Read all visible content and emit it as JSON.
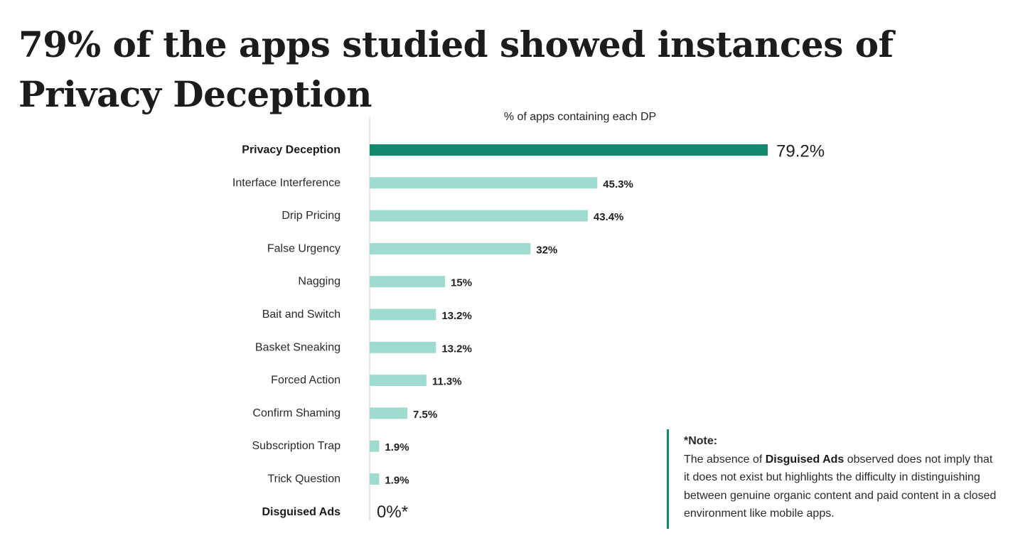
{
  "page": {
    "title": "79% of the apps studied showed instances of Privacy Deception"
  },
  "chart_data": {
    "type": "bar",
    "orientation": "horizontal",
    "title": "79% of the apps studied showed instances of Privacy Deception",
    "subtitle": "% of apps containing each DP",
    "categories": [
      "Privacy Deception",
      "Interface Interference",
      "Drip Pricing",
      "False Urgency",
      "Nagging",
      "Bait and Switch",
      "Basket Sneaking",
      "Forced Action",
      "Confirm Shaming",
      "Subscription Trap",
      "Trick Question",
      "Disguised Ads"
    ],
    "values": [
      79.2,
      45.3,
      43.4,
      32,
      15,
      13.2,
      13.2,
      11.3,
      7.5,
      1.9,
      1.9,
      0
    ],
    "value_labels": [
      "79.2%",
      "45.3%",
      "43.4%",
      "32%",
      "15%",
      "13.2%",
      "13.2%",
      "11.3%",
      "7.5%",
      "1.9%",
      "1.9%",
      "0%*"
    ],
    "highlighted": [
      "Privacy Deception",
      "Disguised Ads"
    ],
    "xlim": [
      0,
      79.2
    ],
    "grid": false,
    "colors": {
      "highlight": "#0f8a6c",
      "default": "#9fdccf",
      "axis": "#cfcfcf"
    }
  },
  "note": {
    "heading": "*Note:",
    "text_before": "The absence of ",
    "bold_term": "Disguised Ads",
    "text_after": " observed does not imply that it does not exist but highlights the difficulty in distinguishing between genuine organic content and paid content in a closed environment like mobile apps."
  }
}
